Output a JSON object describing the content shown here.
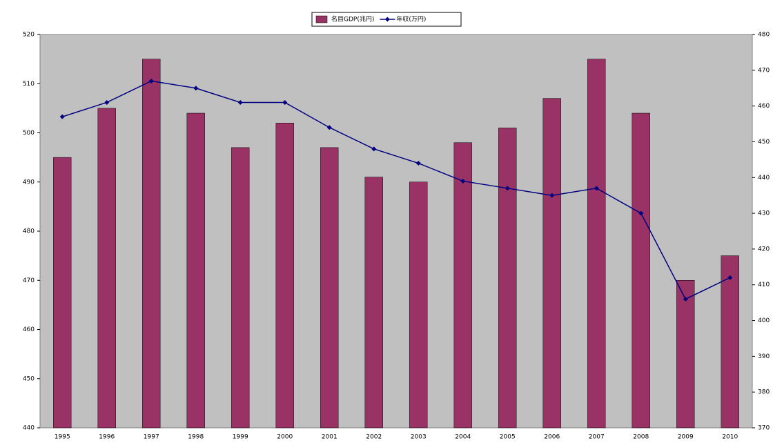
{
  "chart_data": {
    "type": "bar_line",
    "categories": [
      "1995",
      "1996",
      "1997",
      "1998",
      "1999",
      "2000",
      "2001",
      "2002",
      "2003",
      "2004",
      "2005",
      "2006",
      "2007",
      "2008",
      "2009",
      "2010"
    ],
    "series": [
      {
        "name": "名目GDP(兆円)",
        "color": "#993366",
        "type": "bar",
        "values": [
          495,
          505,
          515,
          504,
          497,
          502,
          497,
          491,
          490,
          498,
          501,
          507,
          515,
          504,
          470,
          475
        ]
      },
      {
        "name": "年収(万円)",
        "color": "#000080",
        "type": "line",
        "axis": "y2",
        "values": [
          457,
          461,
          467,
          465,
          461,
          461,
          454,
          448,
          444,
          439,
          437,
          435,
          437,
          430,
          406,
          412
        ]
      }
    ],
    "ylim": [
      440,
      520
    ],
    "yticks": [
      440,
      450,
      460,
      470,
      480,
      490,
      500,
      510,
      520
    ],
    "y2lim": [
      370,
      480
    ],
    "y2ticks": [
      370,
      380,
      390,
      400,
      410,
      420,
      430,
      440,
      450,
      460,
      470,
      480
    ],
    "legend": "top"
  }
}
